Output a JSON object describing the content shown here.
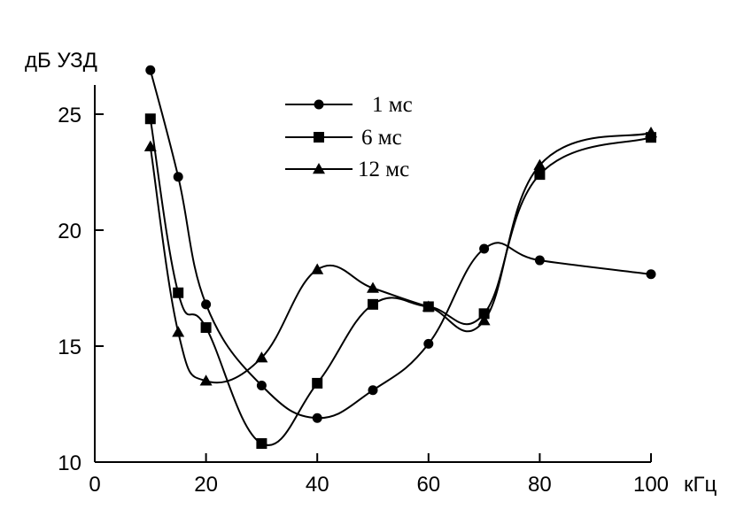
{
  "chart_data": {
    "type": "line",
    "ylabel": "дБ УЗД",
    "xlabel": "кГц",
    "xlim": [
      0,
      100
    ],
    "ylim": [
      10,
      26.5
    ],
    "x_ticks": [
      0,
      20,
      40,
      60,
      80,
      100
    ],
    "y_ticks": [
      10,
      15,
      20,
      25
    ],
    "grid": false,
    "legend_position": "top-center",
    "series": [
      {
        "name": "1 мс",
        "marker": "circle",
        "x": [
          10,
          15,
          20,
          30,
          40,
          50,
          60,
          70,
          80,
          100
        ],
        "y": [
          26.9,
          22.3,
          16.8,
          13.3,
          11.9,
          13.1,
          15.1,
          19.2,
          18.7,
          18.1
        ]
      },
      {
        "name": "6 мс",
        "marker": "square",
        "x": [
          10,
          15,
          20,
          30,
          40,
          50,
          60,
          70,
          80,
          100
        ],
        "y": [
          24.8,
          17.3,
          15.8,
          10.8,
          13.4,
          16.8,
          16.7,
          16.4,
          22.4,
          24.0
        ]
      },
      {
        "name": "12 мс",
        "marker": "triangle",
        "x": [
          10,
          15,
          20,
          30,
          40,
          50,
          60,
          70,
          80,
          100
        ],
        "y": [
          23.6,
          15.6,
          13.5,
          14.5,
          18.3,
          17.5,
          16.7,
          16.1,
          22.8,
          24.2
        ]
      }
    ]
  }
}
